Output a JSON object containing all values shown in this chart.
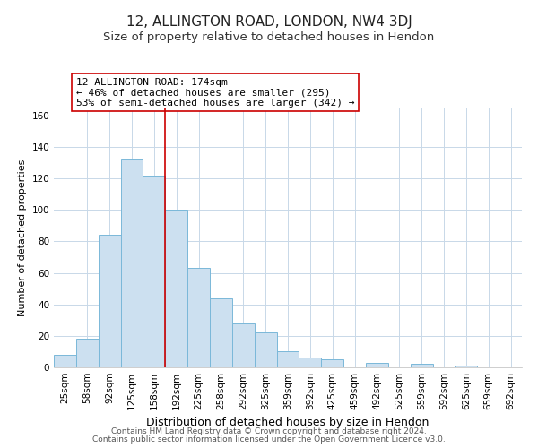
{
  "title": "12, ALLINGTON ROAD, LONDON, NW4 3DJ",
  "subtitle": "Size of property relative to detached houses in Hendon",
  "xlabel": "Distribution of detached houses by size in Hendon",
  "ylabel": "Number of detached properties",
  "bar_labels": [
    "25sqm",
    "58sqm",
    "92sqm",
    "125sqm",
    "158sqm",
    "192sqm",
    "225sqm",
    "258sqm",
    "292sqm",
    "325sqm",
    "359sqm",
    "392sqm",
    "425sqm",
    "459sqm",
    "492sqm",
    "525sqm",
    "559sqm",
    "592sqm",
    "625sqm",
    "659sqm",
    "692sqm"
  ],
  "bar_values": [
    8,
    18,
    84,
    132,
    122,
    100,
    63,
    44,
    28,
    22,
    10,
    6,
    5,
    0,
    3,
    0,
    2,
    0,
    1,
    0,
    0
  ],
  "bar_color": "#cce0f0",
  "bar_edge_color": "#7ab8d9",
  "vline_x": 4.5,
  "vline_color": "#cc0000",
  "annotation_title": "12 ALLINGTON ROAD: 174sqm",
  "annotation_line1": "← 46% of detached houses are smaller (295)",
  "annotation_line2": "53% of semi-detached houses are larger (342) →",
  "annotation_box_color": "#ffffff",
  "annotation_box_edge": "#cc0000",
  "ylim": [
    0,
    165
  ],
  "footer1": "Contains HM Land Registry data © Crown copyright and database right 2024.",
  "footer2": "Contains public sector information licensed under the Open Government Licence v3.0.",
  "background_color": "#ffffff",
  "grid_color": "#c8d8e8",
  "title_fontsize": 11,
  "subtitle_fontsize": 9.5,
  "xlabel_fontsize": 9,
  "ylabel_fontsize": 8,
  "tick_fontsize": 7.5,
  "annotation_fontsize": 8,
  "footer_fontsize": 6.5
}
